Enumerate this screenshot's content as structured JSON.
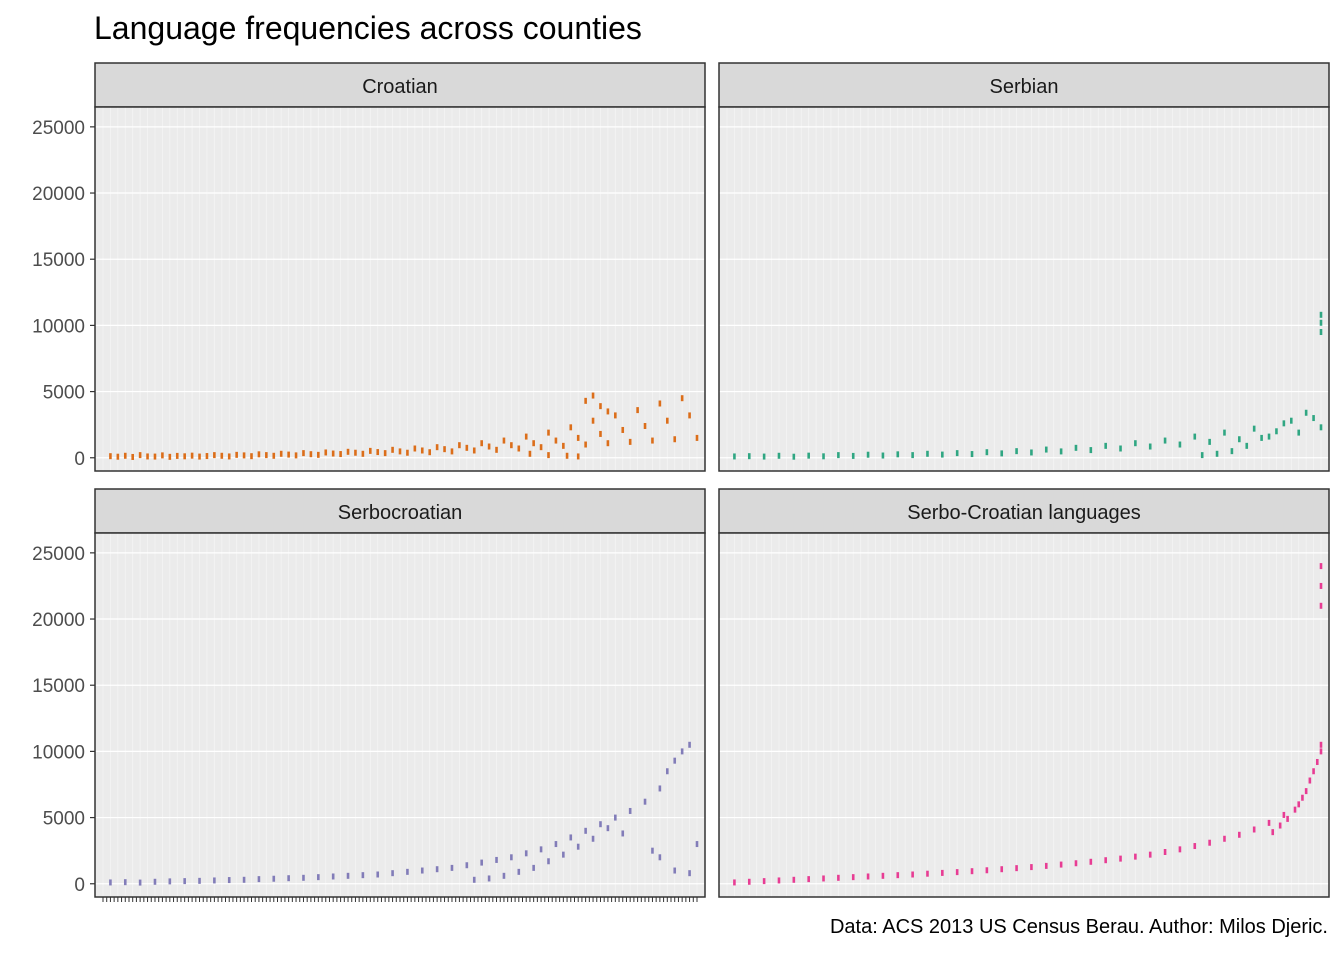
{
  "chart_data": {
    "type": "scatter",
    "title": "Language frequencies across counties",
    "caption": "Data: ACS 2013 US Census Berau. Author: Milos Djeric.",
    "xlabel": "",
    "ylabel": "",
    "ylim": [
      -1000,
      26500
    ],
    "y_ticks": [
      0,
      5000,
      10000,
      15000,
      20000,
      25000
    ],
    "y_tick_labels": [
      "0",
      "5000",
      "10000",
      "15000",
      "20000",
      "25000"
    ],
    "x_range": [
      0,
      160
    ],
    "grid": true,
    "legend": "none",
    "panels": [
      {
        "name": "Croatian",
        "color": "#D95F02",
        "points": [
          [
            2,
            120
          ],
          [
            4,
            80
          ],
          [
            6,
            150
          ],
          [
            8,
            60
          ],
          [
            10,
            200
          ],
          [
            12,
            100
          ],
          [
            14,
            90
          ],
          [
            16,
            180
          ],
          [
            18,
            70
          ],
          [
            20,
            140
          ],
          [
            22,
            110
          ],
          [
            24,
            160
          ],
          [
            26,
            90
          ],
          [
            28,
            130
          ],
          [
            30,
            200
          ],
          [
            32,
            150
          ],
          [
            34,
            100
          ],
          [
            36,
            220
          ],
          [
            38,
            180
          ],
          [
            40,
            120
          ],
          [
            42,
            260
          ],
          [
            44,
            200
          ],
          [
            46,
            150
          ],
          [
            48,
            300
          ],
          [
            50,
            240
          ],
          [
            52,
            180
          ],
          [
            54,
            350
          ],
          [
            56,
            270
          ],
          [
            58,
            220
          ],
          [
            60,
            400
          ],
          [
            62,
            320
          ],
          [
            64,
            280
          ],
          [
            66,
            450
          ],
          [
            68,
            380
          ],
          [
            70,
            300
          ],
          [
            72,
            520
          ],
          [
            74,
            430
          ],
          [
            76,
            350
          ],
          [
            78,
            600
          ],
          [
            80,
            480
          ],
          [
            82,
            380
          ],
          [
            84,
            700
          ],
          [
            86,
            550
          ],
          [
            88,
            420
          ],
          [
            90,
            800
          ],
          [
            92,
            650
          ],
          [
            94,
            480
          ],
          [
            96,
            950
          ],
          [
            98,
            750
          ],
          [
            100,
            550
          ],
          [
            102,
            1100
          ],
          [
            104,
            850
          ],
          [
            106,
            600
          ],
          [
            108,
            1300
          ],
          [
            110,
            950
          ],
          [
            112,
            700
          ],
          [
            114,
            1600
          ],
          [
            116,
            1100
          ],
          [
            118,
            800
          ],
          [
            120,
            1900
          ],
          [
            122,
            1300
          ],
          [
            124,
            900
          ],
          [
            126,
            2300
          ],
          [
            128,
            1500
          ],
          [
            130,
            1000
          ],
          [
            132,
            2800
          ],
          [
            134,
            1800
          ],
          [
            136,
            1100
          ],
          [
            138,
            3200
          ],
          [
            140,
            2100
          ],
          [
            142,
            1200
          ],
          [
            144,
            3600
          ],
          [
            146,
            2400
          ],
          [
            148,
            1300
          ],
          [
            150,
            4100
          ],
          [
            152,
            2800
          ],
          [
            154,
            1400
          ],
          [
            156,
            4500
          ],
          [
            158,
            3200
          ],
          [
            160,
            1500
          ],
          [
            130,
            4300
          ],
          [
            132,
            4700
          ],
          [
            134,
            3900
          ],
          [
            136,
            3500
          ],
          [
            115,
            300
          ],
          [
            120,
            200
          ],
          [
            125,
            150
          ],
          [
            128,
            100
          ]
        ]
      },
      {
        "name": "Serbian",
        "color": "#1B9E77",
        "points": [
          [
            2,
            100
          ],
          [
            6,
            120
          ],
          [
            10,
            90
          ],
          [
            14,
            150
          ],
          [
            18,
            80
          ],
          [
            22,
            160
          ],
          [
            26,
            110
          ],
          [
            30,
            200
          ],
          [
            34,
            140
          ],
          [
            38,
            230
          ],
          [
            42,
            170
          ],
          [
            46,
            260
          ],
          [
            50,
            200
          ],
          [
            54,
            300
          ],
          [
            58,
            240
          ],
          [
            62,
            350
          ],
          [
            66,
            280
          ],
          [
            70,
            420
          ],
          [
            74,
            330
          ],
          [
            78,
            500
          ],
          [
            82,
            400
          ],
          [
            86,
            620
          ],
          [
            90,
            480
          ],
          [
            94,
            750
          ],
          [
            98,
            580
          ],
          [
            102,
            900
          ],
          [
            106,
            700
          ],
          [
            110,
            1100
          ],
          [
            114,
            850
          ],
          [
            118,
            1300
          ],
          [
            122,
            1000
          ],
          [
            126,
            1600
          ],
          [
            130,
            1200
          ],
          [
            134,
            1900
          ],
          [
            138,
            1400
          ],
          [
            142,
            2200
          ],
          [
            146,
            1600
          ],
          [
            150,
            2600
          ],
          [
            154,
            1900
          ],
          [
            158,
            3000
          ],
          [
            160,
            2300
          ],
          [
            160,
            9500
          ],
          [
            160,
            10200
          ],
          [
            160,
            10800
          ],
          [
            156,
            3400
          ],
          [
            152,
            2800
          ],
          [
            148,
            2000
          ],
          [
            144,
            1500
          ],
          [
            140,
            900
          ],
          [
            136,
            500
          ],
          [
            132,
            300
          ],
          [
            128,
            200
          ]
        ]
      },
      {
        "name": "Serbocroatian",
        "color": "#7570B3",
        "points": [
          [
            2,
            100
          ],
          [
            6,
            120
          ],
          [
            10,
            90
          ],
          [
            14,
            150
          ],
          [
            18,
            180
          ],
          [
            22,
            200
          ],
          [
            26,
            220
          ],
          [
            30,
            250
          ],
          [
            34,
            280
          ],
          [
            38,
            300
          ],
          [
            42,
            350
          ],
          [
            46,
            380
          ],
          [
            50,
            420
          ],
          [
            54,
            450
          ],
          [
            58,
            500
          ],
          [
            62,
            550
          ],
          [
            66,
            600
          ],
          [
            70,
            650
          ],
          [
            74,
            700
          ],
          [
            78,
            800
          ],
          [
            82,
            900
          ],
          [
            86,
            1000
          ],
          [
            90,
            1100
          ],
          [
            94,
            1200
          ],
          [
            98,
            1400
          ],
          [
            102,
            1600
          ],
          [
            106,
            1800
          ],
          [
            110,
            2000
          ],
          [
            114,
            2300
          ],
          [
            118,
            2600
          ],
          [
            122,
            3000
          ],
          [
            126,
            3500
          ],
          [
            130,
            4000
          ],
          [
            134,
            4500
          ],
          [
            138,
            5000
          ],
          [
            142,
            5500
          ],
          [
            146,
            6200
          ],
          [
            150,
            7200
          ],
          [
            152,
            8500
          ],
          [
            154,
            9300
          ],
          [
            156,
            10000
          ],
          [
            158,
            10500
          ],
          [
            160,
            3000
          ],
          [
            140,
            3800
          ],
          [
            136,
            4200
          ],
          [
            132,
            3400
          ],
          [
            128,
            2800
          ],
          [
            124,
            2200
          ],
          [
            120,
            1700
          ],
          [
            116,
            1200
          ],
          [
            112,
            900
          ],
          [
            108,
            600
          ],
          [
            104,
            400
          ],
          [
            100,
            300
          ],
          [
            148,
            2500
          ],
          [
            150,
            2000
          ],
          [
            154,
            1000
          ],
          [
            158,
            800
          ]
        ]
      },
      {
        "name": "Serbo-Croatian languages",
        "color": "#E7298A",
        "points": [
          [
            2,
            100
          ],
          [
            6,
            150
          ],
          [
            10,
            200
          ],
          [
            14,
            250
          ],
          [
            18,
            300
          ],
          [
            22,
            350
          ],
          [
            26,
            400
          ],
          [
            30,
            450
          ],
          [
            34,
            500
          ],
          [
            38,
            550
          ],
          [
            42,
            600
          ],
          [
            46,
            650
          ],
          [
            50,
            700
          ],
          [
            54,
            760
          ],
          [
            58,
            820
          ],
          [
            62,
            880
          ],
          [
            66,
            950
          ],
          [
            70,
            1020
          ],
          [
            74,
            1100
          ],
          [
            78,
            1180
          ],
          [
            82,
            1260
          ],
          [
            86,
            1350
          ],
          [
            90,
            1450
          ],
          [
            94,
            1550
          ],
          [
            98,
            1660
          ],
          [
            102,
            1780
          ],
          [
            106,
            1900
          ],
          [
            110,
            2050
          ],
          [
            114,
            2200
          ],
          [
            118,
            2400
          ],
          [
            122,
            2600
          ],
          [
            126,
            2850
          ],
          [
            130,
            3100
          ],
          [
            134,
            3400
          ],
          [
            138,
            3700
          ],
          [
            142,
            4100
          ],
          [
            146,
            4600
          ],
          [
            150,
            5200
          ],
          [
            154,
            6000
          ],
          [
            156,
            7000
          ],
          [
            158,
            8500
          ],
          [
            160,
            10000
          ],
          [
            160,
            10500
          ],
          [
            160,
            21000
          ],
          [
            160,
            22500
          ],
          [
            160,
            24000
          ],
          [
            159,
            9200
          ],
          [
            157,
            7800
          ],
          [
            155,
            6500
          ],
          [
            153,
            5600
          ],
          [
            151,
            4900
          ],
          [
            149,
            4400
          ],
          [
            147,
            3900
          ]
        ]
      }
    ]
  }
}
